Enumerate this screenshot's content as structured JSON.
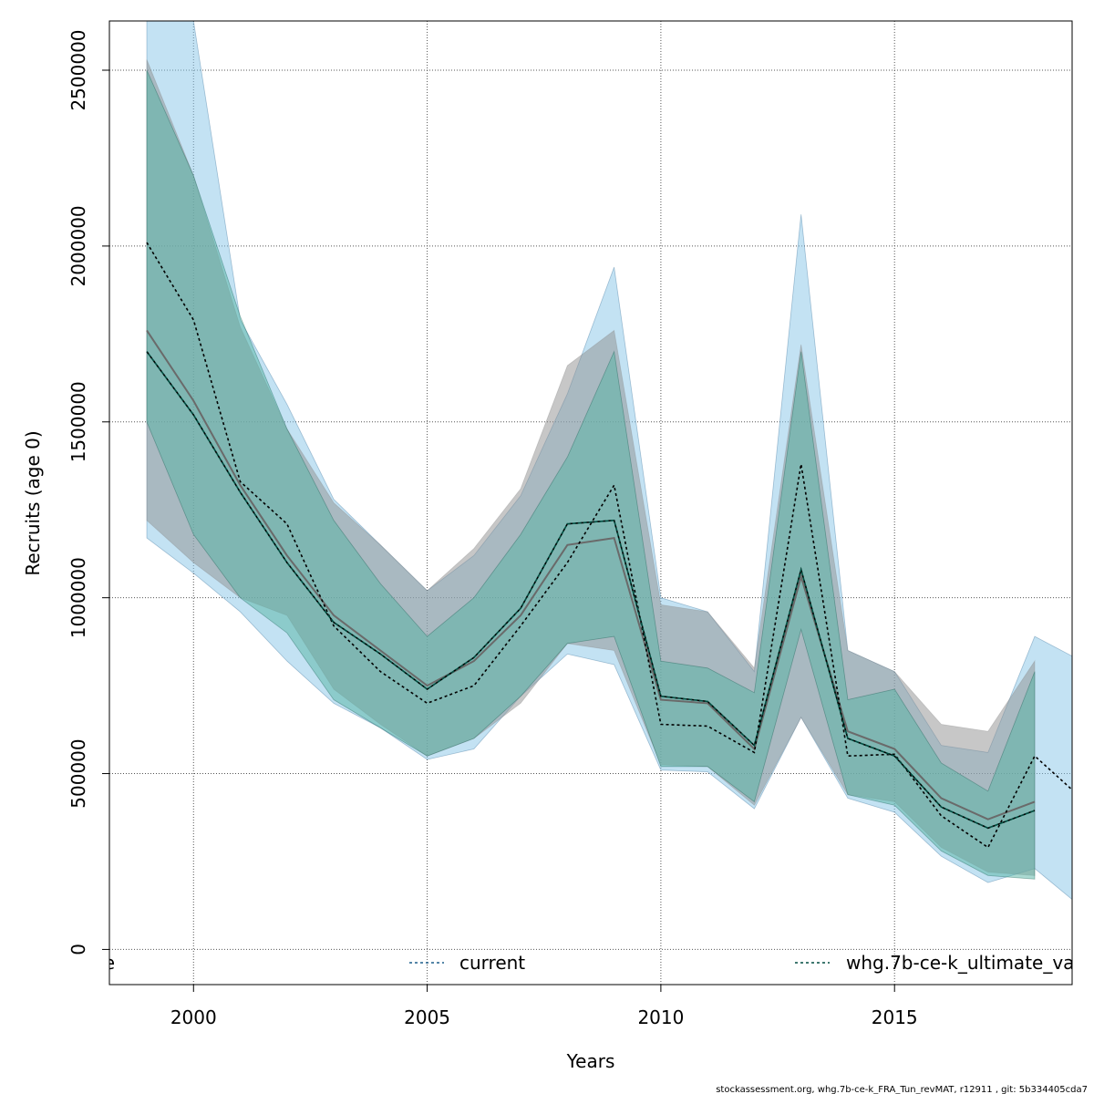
{
  "chart_data": {
    "type": "line",
    "title": "",
    "xlabel": "Years",
    "ylabel": "Recruits (age 0)",
    "xlim": [
      1998.2,
      2018.8
    ],
    "ylim": [
      -100000,
      2640000
    ],
    "x_ticks": [
      2000,
      2005,
      2010,
      2015
    ],
    "y_ticks": [
      0,
      500000,
      1000000,
      1500000,
      2000000,
      2500000
    ],
    "grid": true,
    "legend_position": "bottom",
    "legend": [
      {
        "label": "e",
        "color": "#000000",
        "dash": "none"
      },
      {
        "label": "current",
        "color": "#1f5f8b",
        "dash": "3,3"
      },
      {
        "label": "whg.7b-ce-k_ultimate_va",
        "color": "#004d40",
        "dash": "3,3"
      }
    ],
    "footer": "stockassessment.org, whg.7b-ce-k_FRA_Tun_revMAT, r12911 , git: 5b334405cda7",
    "series": [
      {
        "color": "#888888",
        "fill": "#909090",
        "x": [
          1999,
          2000,
          2001,
          2002,
          2003,
          2004,
          2005,
          2006,
          2007,
          2008,
          2009,
          2010,
          2011,
          2012,
          2013,
          2014,
          2015,
          2016,
          2017,
          2018
        ],
        "values": [
          1760000,
          1560000,
          1320000,
          1120000,
          950000,
          850000,
          750000,
          820000,
          950000,
          1150000,
          1170000,
          710000,
          700000,
          570000,
          1060000,
          620000,
          570000,
          430000,
          370000,
          420000
        ],
        "lower": [
          1220000,
          1100000,
          1000000,
          950000,
          740000,
          640000,
          550000,
          600000,
          700000,
          870000,
          850000,
          525000,
          520000,
          410000,
          660000,
          440000,
          420000,
          290000,
          220000,
          210000
        ],
        "upper": [
          2530000,
          2200000,
          1770000,
          1480000,
          1270000,
          1150000,
          1020000,
          1140000,
          1310000,
          1660000,
          1760000,
          980000,
          960000,
          800000,
          1720000,
          850000,
          790000,
          640000,
          620000,
          820000
        ]
      },
      {
        "color": "#1f5f8b",
        "fill": "#87c6e8",
        "x": [
          1999,
          2000,
          2001,
          2002,
          2003,
          2004,
          2005,
          2006,
          2007,
          2008,
          2009,
          2010,
          2011,
          2012,
          2013,
          2014,
          2015,
          2016,
          2017,
          2018,
          2019
        ],
        "values": [
          2010000,
          1790000,
          1330000,
          1210000,
          920000,
          790000,
          700000,
          750000,
          920000,
          1100000,
          1320000,
          640000,
          635000,
          560000,
          1380000,
          550000,
          555000,
          380000,
          290000,
          550000,
          430000
        ],
        "lower": [
          1170000,
          1070000,
          960000,
          820000,
          700000,
          630000,
          540000,
          570000,
          720000,
          840000,
          810000,
          510000,
          505000,
          400000,
          660000,
          430000,
          390000,
          265000,
          190000,
          230000,
          120000
        ],
        "upper": [
          2700000,
          2640000,
          1790000,
          1550000,
          1280000,
          1150000,
          1020000,
          1120000,
          1290000,
          1580000,
          1940000,
          1000000,
          960000,
          790000,
          2090000,
          850000,
          790000,
          580000,
          560000,
          890000,
          820000
        ]
      },
      {
        "color": "#004d40",
        "fill": "#56b4a3",
        "x": [
          1999,
          2000,
          2001,
          2002,
          2003,
          2004,
          2005,
          2006,
          2007,
          2008,
          2009,
          2010,
          2011,
          2012,
          2013,
          2014,
          2015,
          2016,
          2017,
          2018
        ],
        "values": [
          1700000,
          1520000,
          1300000,
          1100000,
          930000,
          840000,
          740000,
          830000,
          970000,
          1210000,
          1220000,
          720000,
          705000,
          580000,
          1080000,
          600000,
          550000,
          405000,
          345000,
          395000
        ],
        "lower": [
          1500000,
          1180000,
          1000000,
          900000,
          710000,
          630000,
          550000,
          600000,
          720000,
          870000,
          890000,
          520000,
          520000,
          420000,
          910000,
          440000,
          410000,
          280000,
          210000,
          200000
        ],
        "upper": [
          2500000,
          2200000,
          1800000,
          1480000,
          1220000,
          1040000,
          890000,
          1000000,
          1180000,
          1400000,
          1700000,
          820000,
          800000,
          730000,
          1700000,
          710000,
          740000,
          530000,
          450000,
          790000
        ]
      }
    ]
  }
}
